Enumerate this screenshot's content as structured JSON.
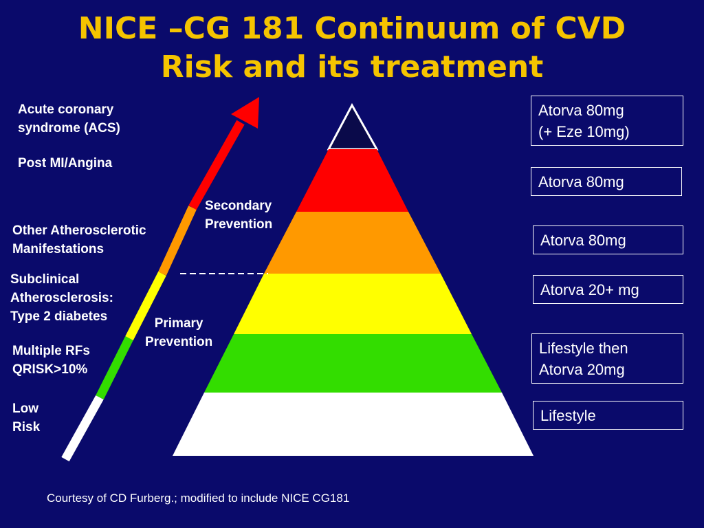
{
  "title": {
    "line1": "NICE –CG 181 Continuum of CVD",
    "line2": "Risk and its treatment"
  },
  "colors": {
    "background": "#0a0a6b",
    "title": "#f5c400",
    "tier_top": "#0a0a4a",
    "tier_red": "#ff0000",
    "tier_orange": "#ff9900",
    "tier_yellow": "#ffff00",
    "tier_green": "#33dd00",
    "tier_white": "#ffffff"
  },
  "risk_labels": {
    "acs": "Acute coronary\nsyndrome (ACS)",
    "post_mi": "Post MI/Angina",
    "other_athero": "Other Atherosclerotic\nManifestations",
    "subclinical": "Subclinical\nAtherosclerosis:\nType 2 diabetes",
    "multiple_rfs": "Multiple RFs\nQRISK>10%",
    "low_risk": "Low\nRisk"
  },
  "prevention_labels": {
    "secondary": "Secondary\nPrevention",
    "primary": "Primary\nPrevention"
  },
  "treatments": {
    "t1": "Atorva 80mg\n(+ Eze 10mg)",
    "t2": "Atorva 80mg",
    "t3": "Atorva 80mg",
    "t4": "Atorva 20+ mg",
    "t5": "Lifestyle then\nAtorva 20mg",
    "t6": "Lifestyle"
  },
  "footer": "Courtesy of CD Furberg.; modified to include NICE CG181"
}
